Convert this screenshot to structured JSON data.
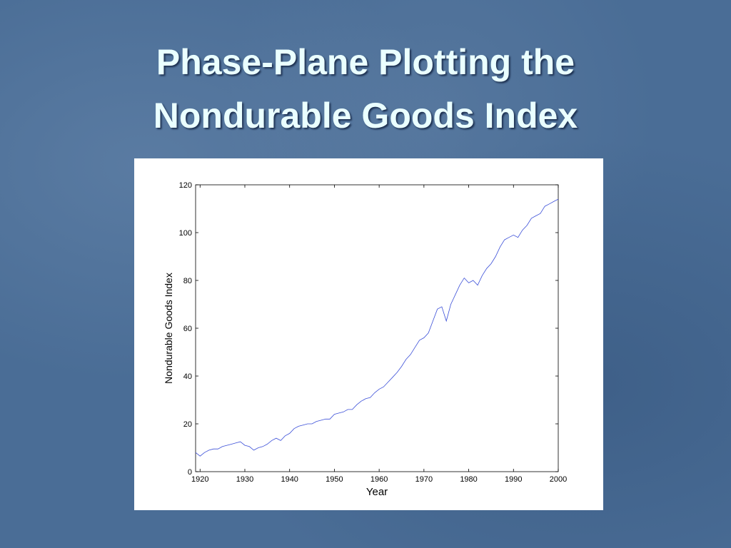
{
  "title": "Phase-Plane Plotting the Nondurable Goods Index",
  "chart_data": {
    "type": "line",
    "xlabel": "Year",
    "ylabel": "Nondurable Goods Index",
    "x": [
      1919,
      1920,
      1921,
      1922,
      1923,
      1924,
      1925,
      1926,
      1927,
      1928,
      1929,
      1930,
      1931,
      1932,
      1933,
      1934,
      1935,
      1936,
      1937,
      1938,
      1939,
      1940,
      1941,
      1942,
      1943,
      1944,
      1945,
      1946,
      1947,
      1948,
      1949,
      1950,
      1951,
      1952,
      1953,
      1954,
      1955,
      1956,
      1957,
      1958,
      1959,
      1960,
      1961,
      1962,
      1963,
      1964,
      1965,
      1966,
      1967,
      1968,
      1969,
      1970,
      1971,
      1972,
      1973,
      1974,
      1975,
      1976,
      1977,
      1978,
      1979,
      1980,
      1981,
      1982,
      1983,
      1984,
      1985,
      1986,
      1987,
      1988,
      1989,
      1990,
      1991,
      1992,
      1993,
      1994,
      1995,
      1996,
      1997,
      1998,
      1999,
      2000
    ],
    "values": [
      8,
      6.5,
      8,
      9,
      9.5,
      9.5,
      10.5,
      11,
      11.5,
      12,
      12.5,
      11,
      10.5,
      9,
      10,
      10.5,
      11.5,
      13,
      14,
      13,
      15,
      16,
      18,
      19,
      19.5,
      20,
      20,
      21,
      21.5,
      22,
      22,
      24,
      24.5,
      25,
      26,
      26,
      28,
      29.5,
      30.5,
      31,
      33,
      34.5,
      35.5,
      37.5,
      39.5,
      41.5,
      44,
      47,
      49,
      52,
      55,
      56,
      58,
      63,
      68,
      69,
      63,
      70,
      74,
      78,
      81,
      79,
      80,
      78,
      82,
      85,
      87,
      90,
      94,
      97,
      98,
      99,
      98,
      101,
      103,
      106,
      107,
      108,
      111,
      112,
      113,
      114
    ],
    "color": "#3b4fd8",
    "xlim": [
      1919,
      2000
    ],
    "xticks": [
      1920,
      1930,
      1940,
      1950,
      1960,
      1970,
      1980,
      1990,
      2000
    ],
    "ylim": [
      0,
      120
    ],
    "yticks": [
      0,
      20,
      40,
      60,
      80,
      100,
      120
    ]
  }
}
